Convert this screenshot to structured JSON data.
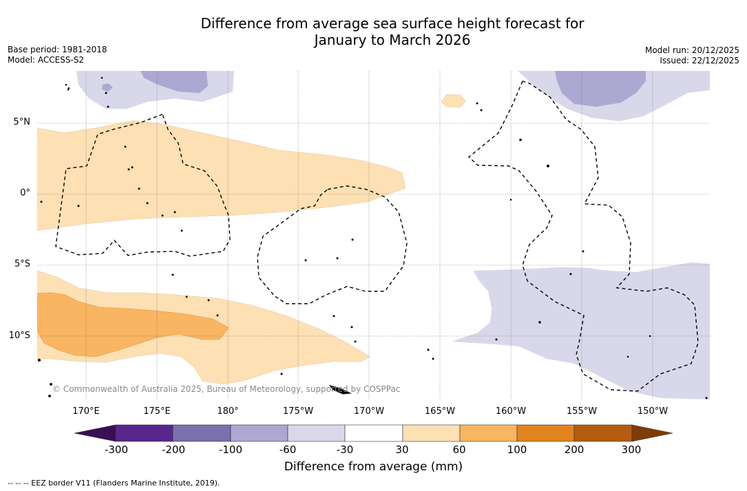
{
  "title": {
    "line1": "Difference from average sea surface height forecast for",
    "line2": "January to March 2026"
  },
  "meta_left": {
    "base_period": "Base period: 1981-2018",
    "model": "Model: ACCESS-S2"
  },
  "meta_right": {
    "model_run": "Model run: 20/12/2025",
    "issued": "Issued: 22/12/2025"
  },
  "map": {
    "lat_labels": [
      "5°N",
      "0°",
      "5°S",
      "10°S"
    ],
    "lon_labels": [
      "170°E",
      "175°E",
      "180°",
      "175°W",
      "170°W",
      "165°W",
      "160°W",
      "155°W",
      "150°W"
    ],
    "copyright": "© Commonwealth of Australia 2025, Bureau of Meteorology, supported by COSPPac"
  },
  "colorbar": {
    "ticks": [
      "-300",
      "-200",
      "-100",
      "-60",
      "-30",
      "30",
      "60",
      "100",
      "200",
      "300"
    ],
    "colors": [
      "#3b0f52",
      "#58278d",
      "#7c6fae",
      "#ada8d1",
      "#d8d8ea",
      "#ffffff",
      "#fde0b4",
      "#f9b561",
      "#e1841d",
      "#b45c10",
      "#7f3b08"
    ],
    "title": "Difference from average (mm)"
  },
  "legend": {
    "eez": "--  --  -- EEZ border V11 (Flanders Marine Institute, 2019)."
  }
}
